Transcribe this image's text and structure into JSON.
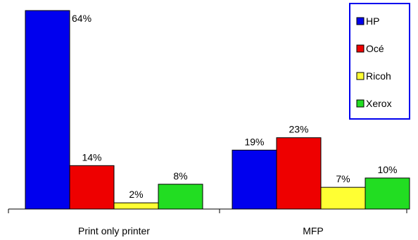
{
  "chart_data": {
    "type": "bar",
    "title": "",
    "xlabel": "",
    "ylabel": "",
    "ylim": [
      0,
      64
    ],
    "grid": false,
    "legend_position": "top-right",
    "categories": [
      "Print only printer",
      "MFP"
    ],
    "series": [
      {
        "name": "HP",
        "color": "#0000ee",
        "values": [
          64,
          19
        ],
        "labels": [
          "64%",
          "19%"
        ]
      },
      {
        "name": "Océ",
        "color": "#ee0000",
        "values": [
          14,
          23
        ],
        "labels": [
          "14%",
          "23%"
        ]
      },
      {
        "name": "Ricoh",
        "color": "#ffff33",
        "values": [
          2,
          7
        ],
        "labels": [
          "2%",
          "7%"
        ]
      },
      {
        "name": "Xerox",
        "color": "#22dd22",
        "values": [
          8,
          10
        ],
        "labels": [
          "8%",
          "10%"
        ]
      }
    ]
  }
}
